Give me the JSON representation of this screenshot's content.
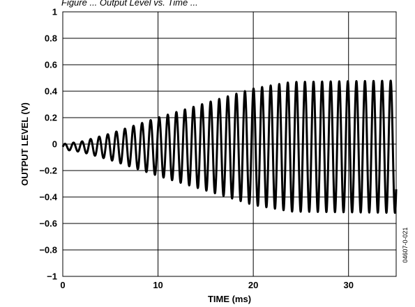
{
  "figure_code": "04607-0-021",
  "top_caption_fragment": "Figure ... Output Level vs. Time ...",
  "chart_data": {
    "type": "line",
    "title": "",
    "xlabel": "TIME (ms)",
    "ylabel": "OUTPUT LEVEL (V)",
    "xlim": [
      0,
      35
    ],
    "ylim": [
      -1,
      1
    ],
    "x_ticks": [
      0,
      10,
      20,
      30
    ],
    "x_tick_labels": [
      "0",
      "10",
      "20",
      "30"
    ],
    "y_ticks": [
      1,
      0.8,
      0.6,
      0.4,
      0.2,
      0,
      -0.2,
      -0.4,
      -0.6,
      -0.8,
      -1
    ],
    "y_tick_labels": [
      "1",
      "0.8",
      "0.6",
      "0.4",
      "0.2",
      "0",
      "−0.2",
      "−0.4",
      "−0.6",
      "−0.8",
      "−1"
    ],
    "grid": true,
    "x_grid_step": 10,
    "y_grid_step": 0.2,
    "series": [
      {
        "description": "oscillating output waveform with amplitude ramping up",
        "waveform": {
          "period_ms": 0.9,
          "start_ms": 0,
          "end_ms": 35,
          "envelope": [
            [
              0,
              0.02
            ],
            [
              2,
              0.04
            ],
            [
              5,
              0.1
            ],
            [
              10,
              0.22
            ],
            [
              15,
              0.33
            ],
            [
              20,
              0.44
            ],
            [
              24,
              0.49
            ],
            [
              35,
              0.5
            ]
          ],
          "dc_offset": -0.02
        },
        "color": "#000000"
      }
    ]
  }
}
